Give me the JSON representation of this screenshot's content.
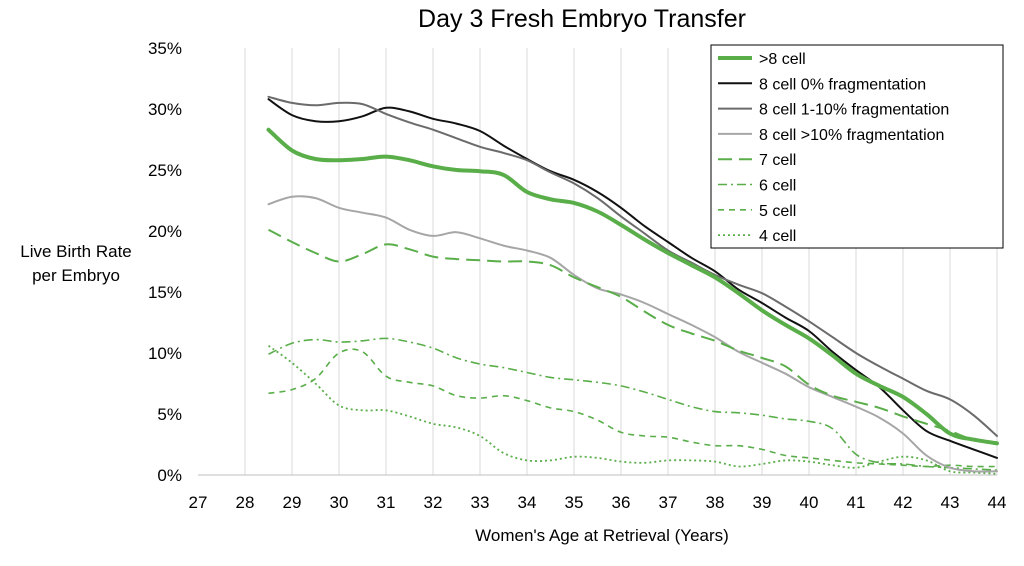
{
  "chart_data": {
    "type": "line",
    "title": "Day 3 Fresh Embryo Transfer",
    "xlabel": "Women's Age at Retrieval (Years)",
    "ylabel_lines": [
      "Live Birth Rate",
      "per Embryo"
    ],
    "xlim": [
      27,
      44
    ],
    "ylim": [
      0,
      35
    ],
    "x_ticks": [
      "27",
      "28",
      "29",
      "30",
      "31",
      "32",
      "33",
      "34",
      "35",
      "36",
      "37",
      "38",
      "39",
      "40",
      "41",
      "42",
      "43",
      "44"
    ],
    "y_ticks": [
      "0%",
      "5%",
      "10%",
      "15%",
      "20%",
      "25%",
      "30%",
      "35%"
    ],
    "grid": "vertical",
    "legend_position": "top-right",
    "series": [
      {
        "name": ">8 cell",
        "color": "#5aae4a",
        "dash": "solid",
        "width": 4,
        "points": [
          [
            28.5,
            28.3
          ],
          [
            29,
            26.6
          ],
          [
            29.5,
            25.9
          ],
          [
            30,
            25.8
          ],
          [
            30.5,
            25.9
          ],
          [
            31,
            26.1
          ],
          [
            31.5,
            25.8
          ],
          [
            32,
            25.3
          ],
          [
            32.5,
            25.0
          ],
          [
            33,
            24.9
          ],
          [
            33.5,
            24.6
          ],
          [
            34,
            23.2
          ],
          [
            34.5,
            22.6
          ],
          [
            35,
            22.3
          ],
          [
            35.5,
            21.6
          ],
          [
            36,
            20.5
          ],
          [
            36.5,
            19.3
          ],
          [
            37,
            18.2
          ],
          [
            37.5,
            17.2
          ],
          [
            38,
            16.2
          ],
          [
            38.5,
            14.9
          ],
          [
            39,
            13.5
          ],
          [
            39.5,
            12.3
          ],
          [
            40,
            11.2
          ],
          [
            40.5,
            9.8
          ],
          [
            41,
            8.3
          ],
          [
            41.5,
            7.3
          ],
          [
            42,
            6.4
          ],
          [
            42.5,
            5.0
          ],
          [
            43,
            3.4
          ],
          [
            43.5,
            2.9
          ],
          [
            44,
            2.6
          ]
        ]
      },
      {
        "name": "8 cell 0% fragmentation",
        "color": "#111111",
        "dash": "solid",
        "width": 2,
        "points": [
          [
            28.5,
            30.8
          ],
          [
            29,
            29.5
          ],
          [
            29.5,
            29.0
          ],
          [
            30,
            29.0
          ],
          [
            30.5,
            29.4
          ],
          [
            31,
            30.1
          ],
          [
            31.5,
            29.8
          ],
          [
            32,
            29.2
          ],
          [
            32.5,
            28.8
          ],
          [
            33,
            28.2
          ],
          [
            33.5,
            27.0
          ],
          [
            34,
            25.9
          ],
          [
            34.5,
            24.9
          ],
          [
            35,
            24.2
          ],
          [
            35.5,
            23.2
          ],
          [
            36,
            21.9
          ],
          [
            36.5,
            20.4
          ],
          [
            37,
            19.1
          ],
          [
            37.5,
            17.8
          ],
          [
            38,
            16.7
          ],
          [
            38.5,
            15.2
          ],
          [
            39,
            14.1
          ],
          [
            39.5,
            12.9
          ],
          [
            40,
            11.8
          ],
          [
            40.5,
            10.1
          ],
          [
            41,
            8.6
          ],
          [
            41.5,
            7.2
          ],
          [
            42,
            5.3
          ],
          [
            42.5,
            3.6
          ],
          [
            43,
            2.8
          ],
          [
            43.5,
            2.1
          ],
          [
            44,
            1.4
          ]
        ]
      },
      {
        "name": "8 cell 1-10% fragmentation",
        "color": "#6b6b6b",
        "dash": "solid",
        "width": 2,
        "points": [
          [
            28.5,
            31.0
          ],
          [
            29,
            30.5
          ],
          [
            29.5,
            30.3
          ],
          [
            30,
            30.5
          ],
          [
            30.5,
            30.4
          ],
          [
            31,
            29.6
          ],
          [
            31.5,
            28.9
          ],
          [
            32,
            28.3
          ],
          [
            32.5,
            27.6
          ],
          [
            33,
            26.9
          ],
          [
            33.5,
            26.4
          ],
          [
            34,
            25.8
          ],
          [
            34.5,
            24.8
          ],
          [
            35,
            23.9
          ],
          [
            35.5,
            22.7
          ],
          [
            36,
            21.2
          ],
          [
            36.5,
            19.8
          ],
          [
            37,
            18.4
          ],
          [
            37.5,
            17.4
          ],
          [
            38,
            16.4
          ],
          [
            38.5,
            15.6
          ],
          [
            39,
            14.9
          ],
          [
            39.5,
            13.8
          ],
          [
            40,
            12.6
          ],
          [
            40.5,
            11.3
          ],
          [
            41,
            10.0
          ],
          [
            41.5,
            8.9
          ],
          [
            42,
            7.9
          ],
          [
            42.5,
            6.9
          ],
          [
            43,
            6.2
          ],
          [
            43.5,
            4.9
          ],
          [
            44,
            3.2
          ]
        ]
      },
      {
        "name": "8 cell >10% fragmentation",
        "color": "#a6a6a6",
        "dash": "solid",
        "width": 2,
        "points": [
          [
            28.5,
            22.2
          ],
          [
            29,
            22.8
          ],
          [
            29.5,
            22.7
          ],
          [
            30,
            21.9
          ],
          [
            30.5,
            21.5
          ],
          [
            31,
            21.1
          ],
          [
            31.5,
            20.1
          ],
          [
            32,
            19.6
          ],
          [
            32.5,
            19.9
          ],
          [
            33,
            19.4
          ],
          [
            33.5,
            18.8
          ],
          [
            34,
            18.4
          ],
          [
            34.5,
            17.8
          ],
          [
            35,
            16.4
          ],
          [
            35.5,
            15.3
          ],
          [
            36,
            14.8
          ],
          [
            36.5,
            14.1
          ],
          [
            37,
            13.2
          ],
          [
            37.5,
            12.3
          ],
          [
            38,
            11.3
          ],
          [
            38.5,
            10.1
          ],
          [
            39,
            9.2
          ],
          [
            39.5,
            8.3
          ],
          [
            40,
            7.2
          ],
          [
            40.5,
            6.4
          ],
          [
            41,
            5.6
          ],
          [
            41.5,
            4.7
          ],
          [
            42,
            3.4
          ],
          [
            42.5,
            1.6
          ],
          [
            43,
            0.6
          ],
          [
            43.5,
            0.3
          ],
          [
            44,
            0.3
          ]
        ]
      },
      {
        "name": "7 cell",
        "color": "#5aae4a",
        "dash": "14,7",
        "width": 2,
        "points": [
          [
            28.5,
            20.1
          ],
          [
            29,
            19.1
          ],
          [
            29.5,
            18.2
          ],
          [
            30,
            17.5
          ],
          [
            30.5,
            18.1
          ],
          [
            31,
            18.9
          ],
          [
            31.5,
            18.5
          ],
          [
            32,
            17.9
          ],
          [
            32.5,
            17.7
          ],
          [
            33,
            17.6
          ],
          [
            33.5,
            17.5
          ],
          [
            34,
            17.5
          ],
          [
            34.5,
            17.2
          ],
          [
            35,
            16.2
          ],
          [
            35.5,
            15.4
          ],
          [
            36,
            14.6
          ],
          [
            36.5,
            13.4
          ],
          [
            37,
            12.3
          ],
          [
            37.5,
            11.6
          ],
          [
            38,
            11.0
          ],
          [
            38.5,
            10.2
          ],
          [
            39,
            9.6
          ],
          [
            39.5,
            8.9
          ],
          [
            40,
            7.4
          ],
          [
            40.5,
            6.5
          ],
          [
            41,
            6.0
          ],
          [
            41.5,
            5.5
          ],
          [
            42,
            4.8
          ],
          [
            42.5,
            4.2
          ],
          [
            43,
            3.6
          ],
          [
            43.5,
            2.9
          ],
          [
            44,
            2.7
          ]
        ]
      },
      {
        "name": "6 cell",
        "color": "#5aae4a",
        "dash": "9,4,2,4",
        "width": 1.6,
        "points": [
          [
            28.5,
            9.9
          ],
          [
            29,
            10.8
          ],
          [
            29.5,
            11.1
          ],
          [
            30,
            10.9
          ],
          [
            30.5,
            11.0
          ],
          [
            31,
            11.2
          ],
          [
            31.5,
            10.9
          ],
          [
            32,
            10.4
          ],
          [
            32.5,
            9.6
          ],
          [
            33,
            9.1
          ],
          [
            33.5,
            8.8
          ],
          [
            34,
            8.4
          ],
          [
            34.5,
            8.0
          ],
          [
            35,
            7.8
          ],
          [
            35.5,
            7.6
          ],
          [
            36,
            7.3
          ],
          [
            36.5,
            6.8
          ],
          [
            37,
            6.2
          ],
          [
            37.5,
            5.6
          ],
          [
            38,
            5.2
          ],
          [
            38.5,
            5.1
          ],
          [
            39,
            4.9
          ],
          [
            39.5,
            4.6
          ],
          [
            40,
            4.4
          ],
          [
            40.5,
            3.8
          ],
          [
            41,
            1.7
          ],
          [
            41.5,
            1.0
          ],
          [
            42,
            0.9
          ],
          [
            42.5,
            0.7
          ],
          [
            43,
            0.6
          ],
          [
            43.5,
            0.5
          ],
          [
            44,
            0.4
          ]
        ]
      },
      {
        "name": "5 cell",
        "color": "#5aae4a",
        "dash": "6,5",
        "width": 1.6,
        "points": [
          [
            28.5,
            6.7
          ],
          [
            29,
            7.0
          ],
          [
            29.5,
            7.9
          ],
          [
            30,
            10.0
          ],
          [
            30.5,
            10.1
          ],
          [
            31,
            8.1
          ],
          [
            31.5,
            7.6
          ],
          [
            32,
            7.3
          ],
          [
            32.5,
            6.5
          ],
          [
            33,
            6.3
          ],
          [
            33.5,
            6.5
          ],
          [
            34,
            6.1
          ],
          [
            34.5,
            5.5
          ],
          [
            35,
            5.2
          ],
          [
            35.5,
            4.5
          ],
          [
            36,
            3.5
          ],
          [
            36.5,
            3.2
          ],
          [
            37,
            3.1
          ],
          [
            37.5,
            2.7
          ],
          [
            38,
            2.4
          ],
          [
            38.5,
            2.4
          ],
          [
            39,
            2.1
          ],
          [
            39.5,
            1.6
          ],
          [
            40,
            1.4
          ],
          [
            40.5,
            1.2
          ],
          [
            41,
            1.0
          ],
          [
            41.5,
            0.9
          ],
          [
            42,
            0.8
          ],
          [
            42.5,
            0.7
          ],
          [
            43,
            0.8
          ],
          [
            43.5,
            0.7
          ],
          [
            44,
            0.7
          ]
        ]
      },
      {
        "name": "4 cell",
        "color": "#5aae4a",
        "dash": "2,3",
        "width": 1.8,
        "points": [
          [
            28.5,
            10.6
          ],
          [
            29,
            9.2
          ],
          [
            29.5,
            7.5
          ],
          [
            30,
            5.7
          ],
          [
            30.5,
            5.3
          ],
          [
            31,
            5.3
          ],
          [
            31.5,
            4.8
          ],
          [
            32,
            4.2
          ],
          [
            32.5,
            3.9
          ],
          [
            33,
            3.2
          ],
          [
            33.5,
            1.8
          ],
          [
            34,
            1.2
          ],
          [
            34.5,
            1.2
          ],
          [
            35,
            1.5
          ],
          [
            35.5,
            1.4
          ],
          [
            36,
            1.1
          ],
          [
            36.5,
            1.0
          ],
          [
            37,
            1.2
          ],
          [
            37.5,
            1.2
          ],
          [
            38,
            1.1
          ],
          [
            38.5,
            0.7
          ],
          [
            39,
            0.9
          ],
          [
            39.5,
            1.2
          ],
          [
            40,
            1.1
          ],
          [
            40.5,
            0.8
          ],
          [
            41,
            0.6
          ],
          [
            41.5,
            1.1
          ],
          [
            42,
            1.5
          ],
          [
            42.5,
            1.2
          ],
          [
            43,
            0.3
          ],
          [
            43.5,
            0.2
          ],
          [
            44,
            0.1
          ]
        ]
      }
    ]
  }
}
